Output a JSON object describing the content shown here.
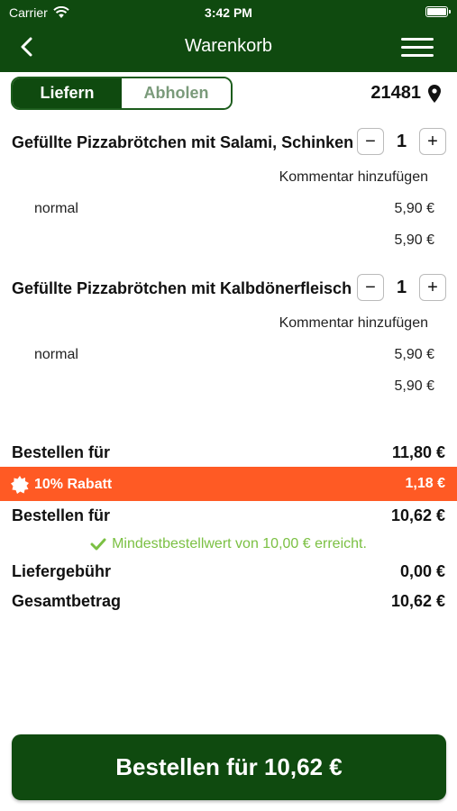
{
  "status_bar": {
    "carrier": "Carrier",
    "time": "3:42 PM"
  },
  "nav": {
    "title": "Warenkorb",
    "back_icon": "chevron-left-icon",
    "menu_icon": "hamburger-menu-icon"
  },
  "delivery_mode": {
    "options": [
      "Liefern",
      "Abholen"
    ],
    "selected": "Liefern",
    "postal_code": "21481",
    "location_icon": "map-pin-icon"
  },
  "items": [
    {
      "name": "Gefüllte Pizzabrötchen mit Salami, Schinken",
      "quantity": "1",
      "minus": "−",
      "plus": "+",
      "comment_link": "Kommentar hinzufügen",
      "variant": "normal",
      "variant_price": "5,90 €",
      "total": "5,90 €"
    },
    {
      "name": "Gefüllte Pizzabrötchen mit Kalbdönerfleisch",
      "quantity": "1",
      "minus": "−",
      "plus": "+",
      "comment_link": "Kommentar hinzufügen",
      "variant": "normal",
      "variant_price": "5,90 €",
      "total": "5,90 €"
    }
  ],
  "summary": {
    "subtotal_label": "Bestellen für",
    "subtotal": "11,80 €",
    "discount_label": "10% Rabatt",
    "discount_value": "1,18 €",
    "discount_color": "#ff5a24",
    "after_discount_label": "Bestellen für",
    "after_discount": "10,62 €",
    "minimum_note": "Mindestbestellwert von 10,00 € erreicht.",
    "minimum_color": "#7bc043",
    "delivery_fee_label": "Liefergebühr",
    "delivery_fee": "0,00 €",
    "total_label": "Gesamtbetrag",
    "total": "10,62 €"
  },
  "order_button": {
    "label": "Bestellen für 10,62 €"
  },
  "colors": {
    "brand_green": "#0f4a0f"
  }
}
